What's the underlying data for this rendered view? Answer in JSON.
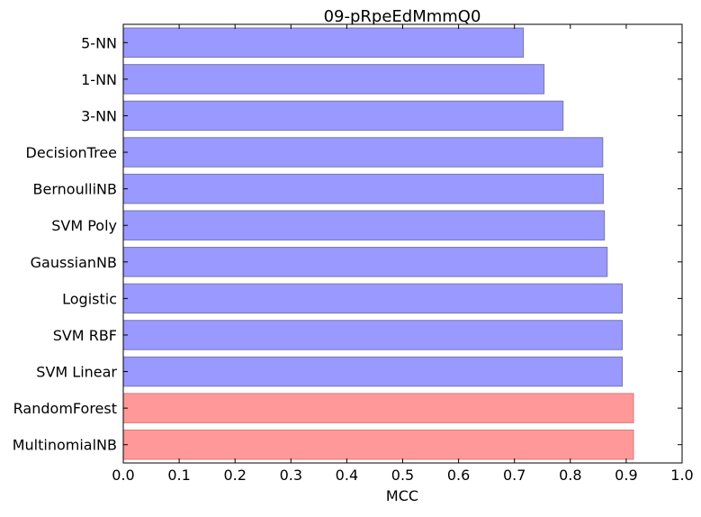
{
  "chart_data": {
    "type": "bar",
    "orientation": "horizontal",
    "title": "09-pRpeEdMmmQ0",
    "xlabel": "MCC",
    "ylabel": "",
    "xlim": [
      0.0,
      1.0
    ],
    "xticks": [
      "0.0",
      "0.1",
      "0.2",
      "0.3",
      "0.4",
      "0.5",
      "0.6",
      "0.7",
      "0.8",
      "0.9",
      "1.0"
    ],
    "grid": false,
    "categories": [
      "5-NN",
      "1-NN",
      "3-NN",
      "DecisionTree",
      "BernoulliNB",
      "SVM Poly",
      "GaussianNB",
      "Logistic",
      "SVM RBF",
      "SVM Linear",
      "RandomForest",
      "MultinomialNB"
    ],
    "values": [
      0.716,
      0.753,
      0.787,
      0.858,
      0.859,
      0.861,
      0.866,
      0.893,
      0.893,
      0.893,
      0.913,
      0.913
    ],
    "highlighted": [
      false,
      false,
      false,
      false,
      false,
      false,
      false,
      false,
      false,
      false,
      true,
      true
    ],
    "colors": {
      "default_fill": "#9999ff",
      "default_edge": "#7777aa",
      "highlight_fill": "#ff9999",
      "highlight_edge": "#e07777",
      "axis": "#000000"
    }
  }
}
